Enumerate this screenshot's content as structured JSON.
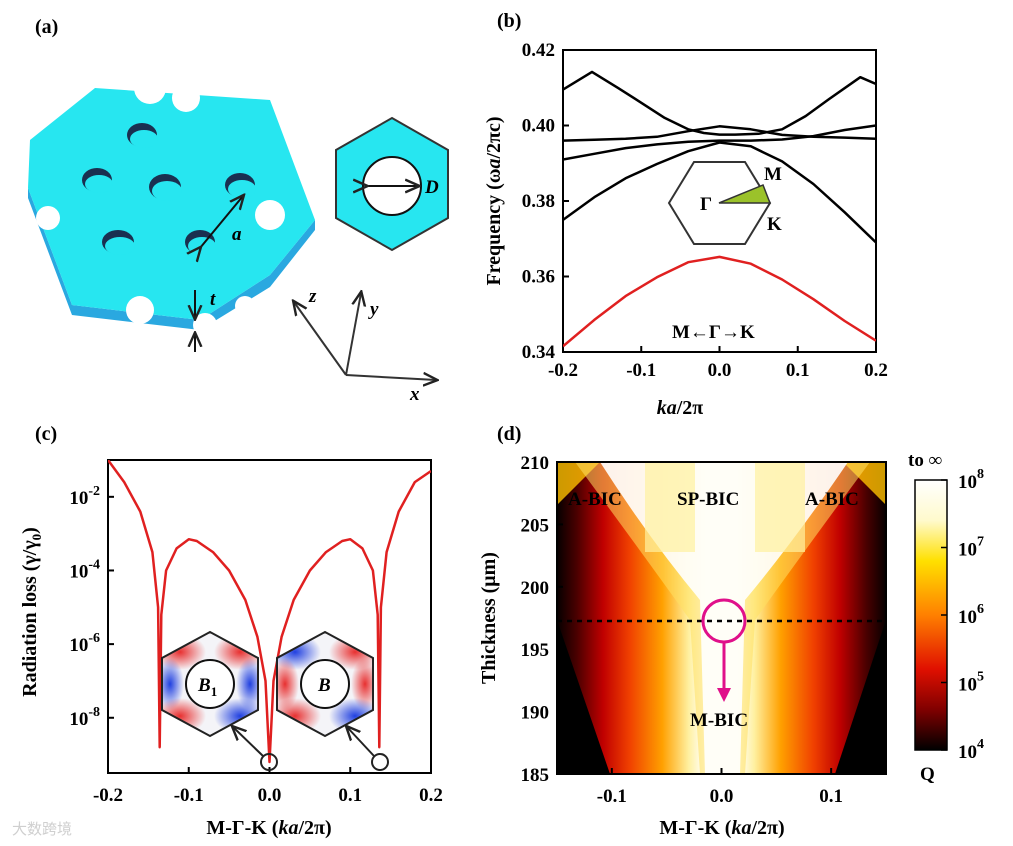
{
  "panel_labels": {
    "a": "(a)",
    "b": "(b)",
    "c": "(c)",
    "d": "(d)"
  },
  "panel_a": {
    "label_a": "a",
    "label_t": "t",
    "label_D": "D",
    "axis_x": "x",
    "axis_y": "y",
    "axis_z": "z",
    "colors": {
      "slab_top": "#27e6f0",
      "slab_side": "#2aa8e0"
    }
  },
  "watermark": "大数跨境",
  "chart_data": [
    {
      "id": "b",
      "type": "line",
      "xlabel": "ka/2π",
      "ylabel": "Frequency (ωa/2πc)",
      "xlim": [
        -0.2,
        0.2
      ],
      "ylim": [
        0.34,
        0.42
      ],
      "x_ticks": [
        "-0.2",
        "-0.1",
        "0.0",
        "0.1",
        "0.2"
      ],
      "y_ticks": [
        "0.34",
        "0.36",
        "0.38",
        "0.40",
        "0.42"
      ],
      "annotation": "M←Γ→K",
      "inset_labels": {
        "gamma": "Γ",
        "M": "M",
        "K": "K"
      },
      "series": [
        {
          "name": "band1",
          "color": "#e02020",
          "x": [
            -0.2,
            -0.16,
            -0.12,
            -0.08,
            -0.04,
            0,
            0.04,
            0.08,
            0.12,
            0.16,
            0.2
          ],
          "y": [
            0.3415,
            0.3485,
            0.3548,
            0.3598,
            0.3638,
            0.3652,
            0.3634,
            0.3592,
            0.354,
            0.3482,
            0.343
          ]
        },
        {
          "name": "band2",
          "color": "#000000",
          "x": [
            -0.2,
            -0.16,
            -0.12,
            -0.08,
            -0.04,
            0,
            0.04,
            0.08,
            0.12,
            0.16,
            0.2
          ],
          "y": [
            0.375,
            0.381,
            0.386,
            0.3898,
            0.3932,
            0.3955,
            0.3945,
            0.3905,
            0.3845,
            0.377,
            0.369
          ]
        },
        {
          "name": "band3",
          "color": "#000000",
          "x": [
            -0.2,
            -0.16,
            -0.12,
            -0.08,
            -0.04,
            0,
            0.04,
            0.08,
            0.12,
            0.16,
            0.2
          ],
          "y": [
            0.391,
            0.3925,
            0.394,
            0.395,
            0.3957,
            0.396,
            0.396,
            0.3963,
            0.3972,
            0.3988,
            0.4
          ]
        },
        {
          "name": "band4",
          "color": "#000000",
          "x": [
            -0.2,
            -0.163,
            -0.13,
            -0.1,
            -0.07,
            -0.04,
            -0.02,
            0,
            0.02,
            0.05,
            0.08,
            0.11,
            0.14,
            0.18,
            0.2
          ],
          "y": [
            0.4095,
            0.4142,
            0.41,
            0.406,
            0.402,
            0.399,
            0.398,
            0.3976,
            0.3976,
            0.3978,
            0.399,
            0.4025,
            0.407,
            0.4128,
            0.411
          ]
        },
        {
          "name": "band5",
          "color": "#000000",
          "x": [
            -0.2,
            -0.16,
            -0.12,
            -0.08,
            -0.04,
            0,
            0.04,
            0.08,
            0.12,
            0.16,
            0.2
          ],
          "y": [
            0.396,
            0.3962,
            0.3965,
            0.397,
            0.3985,
            0.3998,
            0.399,
            0.3975,
            0.397,
            0.3968,
            0.3965
          ]
        }
      ]
    },
    {
      "id": "c",
      "type": "line",
      "xlabel": "M-Γ-K (ka/2π)",
      "ylabel": "Radiation loss (γ/γ0)",
      "xlim": [
        -0.2,
        0.2
      ],
      "ylim_log10": [
        -9.5,
        -1
      ],
      "x_ticks": [
        "-0.2",
        "-0.1",
        "0.0",
        "0.1",
        "0.2"
      ],
      "y_ticks": [
        {
          "base": "10",
          "exp": "-2",
          "value": -2
        },
        {
          "base": "10",
          "exp": "-4",
          "value": -4
        },
        {
          "base": "10",
          "exp": "-6",
          "value": -6
        },
        {
          "base": "10",
          "exp": "-8",
          "value": -8
        }
      ],
      "inset_labels": {
        "left": "B",
        "left_sub": "1",
        "right": "B"
      },
      "series": [
        {
          "name": "loss",
          "color": "#e02020",
          "x": [
            -0.2,
            -0.18,
            -0.16,
            -0.145,
            -0.138,
            -0.136,
            -0.134,
            -0.128,
            -0.115,
            -0.1,
            -0.09,
            -0.07,
            -0.05,
            -0.03,
            -0.015,
            -0.005,
            0,
            0.005,
            0.015,
            0.03,
            0.05,
            0.07,
            0.09,
            0.1,
            0.115,
            0.128,
            0.134,
            0.136,
            0.138,
            0.145,
            0.16,
            0.18,
            0.2
          ],
          "log10y": [
            -1,
            -1.6,
            -2.4,
            -3.5,
            -5.0,
            -8.8,
            -5.2,
            -4.0,
            -3.4,
            -3.15,
            -3.2,
            -3.5,
            -4.0,
            -4.8,
            -5.8,
            -7.0,
            -9.2,
            -7.0,
            -5.8,
            -4.8,
            -4.0,
            -3.5,
            -3.2,
            -3.15,
            -3.4,
            -4.0,
            -5.2,
            -8.8,
            -5.0,
            -3.5,
            -2.4,
            -1.6,
            -1.3
          ]
        }
      ]
    },
    {
      "id": "d",
      "type": "heatmap",
      "xlabel": "M-Γ-K (ka/2π)",
      "ylabel": "Thickness (μm)",
      "xlim": [
        -0.15,
        0.15
      ],
      "ylim": [
        185,
        210
      ],
      "x_ticks": [
        "-0.1",
        "0.0",
        "0.1"
      ],
      "y_ticks": [
        "185",
        "190",
        "195",
        "200",
        "205",
        "210"
      ],
      "colorbar": {
        "label_top": "to ∞",
        "label_bottom": "Q",
        "ticks": [
          {
            "base": "10",
            "exp": "8"
          },
          {
            "base": "10",
            "exp": "7"
          },
          {
            "base": "10",
            "exp": "6"
          },
          {
            "base": "10",
            "exp": "5"
          },
          {
            "base": "10",
            "exp": "4"
          }
        ]
      },
      "annotations": {
        "a_bic_left": "A-BIC",
        "sp_bic": "SP-BIC",
        "a_bic_right": "A-BIC",
        "m_bic": "M-BIC"
      },
      "dashed_line_thickness": 197.3,
      "circle_center": [
        0.0,
        197.3
      ]
    }
  ]
}
